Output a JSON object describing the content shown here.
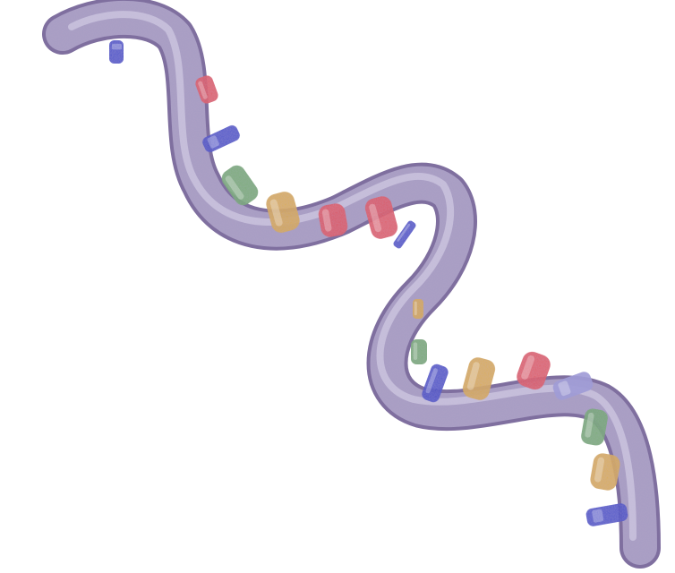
{
  "illustration": {
    "subject": "rna-strand",
    "style": "watercolor",
    "background_color": "#ffffff",
    "backbone_color": "#a79cc3",
    "backbone_shadow_color": "#7f6f9f",
    "backbone_highlight_color": "#ddd7ec",
    "nucleotide_colors": {
      "red": "#e04f57",
      "blue": "#3a45c8",
      "green": "#6fa86b",
      "yellow": "#d9a93f",
      "lavender": "#9c9ad9"
    },
    "nucleotide_sequence": [
      "blue",
      "red",
      "blue",
      "green",
      "yellow",
      "red",
      "red",
      "blue",
      "yellow",
      "green",
      "blue",
      "yellow",
      "red",
      "lavender",
      "green",
      "yellow",
      "blue"
    ]
  }
}
